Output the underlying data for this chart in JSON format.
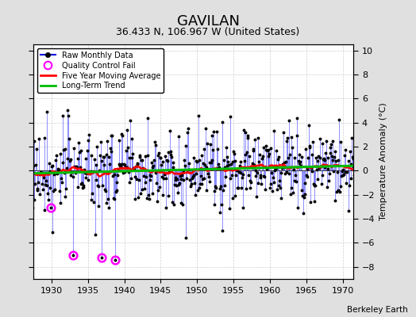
{
  "title": "GAVILAN",
  "subtitle": "36.433 N, 106.967 W (United States)",
  "ylabel": "Temperature Anomaly (°C)",
  "attribution": "Berkeley Earth",
  "xlim": [
    1927.5,
    1971.5
  ],
  "ylim": [
    -9,
    10.5
  ],
  "yticks": [
    -8,
    -6,
    -4,
    -2,
    0,
    2,
    4,
    6,
    8,
    10
  ],
  "xticks": [
    1930,
    1935,
    1940,
    1945,
    1950,
    1955,
    1960,
    1965,
    1970
  ],
  "raw_dot_color": "#000000",
  "raw_line_color": "#6666FF",
  "ma_color": "#FF0000",
  "trend_color": "#00BB00",
  "qc_color": "#FF00FF",
  "background_color": "#E0E0E0",
  "plot_background": "#FFFFFF",
  "title_fontsize": 13,
  "subtitle_fontsize": 9,
  "label_fontsize": 8,
  "tick_fontsize": 8,
  "seed": 42,
  "n_start_year": 1927,
  "n_end_year": 1972,
  "qc_indices": [
    35,
    71,
    118,
    141
  ],
  "qc_values": [
    -3.1,
    -7.0,
    -7.2,
    -7.4
  ]
}
